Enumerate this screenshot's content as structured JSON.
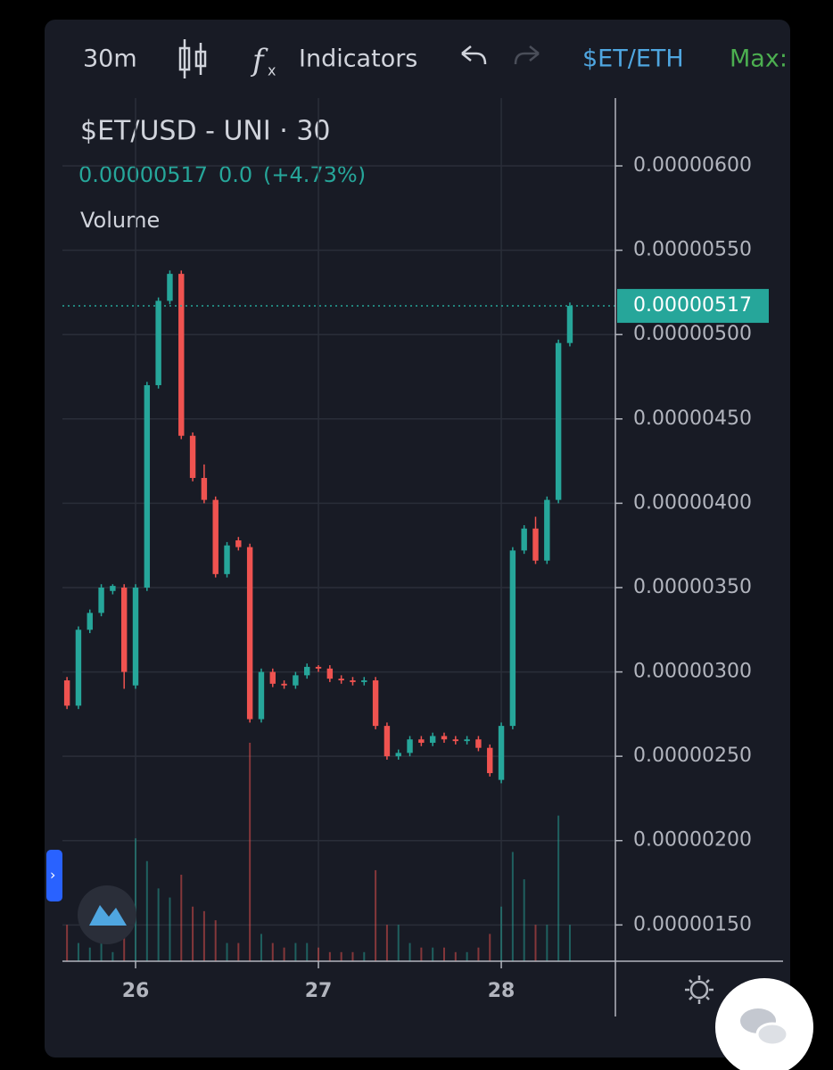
{
  "toolbar": {
    "interval": "30m",
    "indicators": "Indicators",
    "symbol": "$ET/ETH",
    "max": "Max:"
  },
  "chart_data": {
    "type": "candlestick",
    "title": "$ET/USD - UNI · 30",
    "last_price": {
      "value": 5.17e-06,
      "label": "0.00000517"
    },
    "change": "0.0",
    "change_pct": "(+4.73%)",
    "volume_label": "Volume",
    "colors": {
      "up": "#26a69a",
      "down": "#ef5350"
    },
    "xlim": [
      25.6,
      28.624
    ],
    "xticks": [
      26,
      27,
      28
    ],
    "ylim": [
      1.285e-06,
      6.402e-06
    ],
    "yticks": [
      {
        "value": 1.5e-06,
        "label": "0.00000150"
      },
      {
        "value": 2e-06,
        "label": "0.00000200"
      },
      {
        "value": 2.5e-06,
        "label": "0.00000250"
      },
      {
        "value": 3e-06,
        "label": "0.00000300"
      },
      {
        "value": 3.5e-06,
        "label": "0.00000350"
      },
      {
        "value": 4e-06,
        "label": "0.00000400"
      },
      {
        "value": 4.5e-06,
        "label": "0.00000450"
      },
      {
        "value": 5e-06,
        "label": "0.00000500"
      },
      {
        "value": 5.5e-06,
        "label": "0.00000550"
      },
      {
        "value": 6e-06,
        "label": "0.00000600"
      }
    ],
    "grid": true,
    "x": [
      25.625,
      25.6875,
      25.75,
      25.8125,
      25.875,
      25.9375,
      26,
      26.0625,
      26.125,
      26.1875,
      26.25,
      26.3125,
      26.375,
      26.4375,
      26.5,
      26.5625,
      26.625,
      26.6875,
      26.75,
      26.8125,
      26.875,
      26.9375,
      27,
      27.0625,
      27.125,
      27.1875,
      27.25,
      27.3125,
      27.375,
      27.4375,
      27.5,
      27.5625,
      27.625,
      27.6875,
      27.75,
      27.8125,
      27.875,
      27.9375,
      28,
      28.0625,
      28.125,
      28.1875,
      28.25,
      28.3125,
      28.375
    ],
    "open": [
      2.95e-06,
      2.8e-06,
      3.25e-06,
      3.35e-06,
      3.48e-06,
      3.5e-06,
      2.92e-06,
      3.5e-06,
      4.7e-06,
      5.2e-06,
      5.36e-06,
      4.4e-06,
      4.15e-06,
      4.02e-06,
      3.58e-06,
      3.78e-06,
      3.74e-06,
      2.72e-06,
      3e-06,
      2.93e-06,
      2.92e-06,
      2.98e-06,
      3.03e-06,
      3.02e-06,
      2.96e-06,
      2.95e-06,
      2.94e-06,
      2.95e-06,
      2.68e-06,
      2.5e-06,
      2.52e-06,
      2.6e-06,
      2.58e-06,
      2.62e-06,
      2.6e-06,
      2.59e-06,
      2.6e-06,
      2.55e-06,
      2.36e-06,
      2.68e-06,
      3.72e-06,
      3.85e-06,
      3.66e-06,
      4.02e-06,
      4.95e-06
    ],
    "high": [
      2.97e-06,
      3.27e-06,
      3.37e-06,
      3.52e-06,
      3.52e-06,
      3.52e-06,
      3.52e-06,
      4.72e-06,
      5.22e-06,
      5.38e-06,
      5.38e-06,
      4.42e-06,
      4.23e-06,
      4.04e-06,
      3.77e-06,
      3.8e-06,
      3.76e-06,
      3.02e-06,
      3.02e-06,
      2.95e-06,
      3e-06,
      3.05e-06,
      3.04e-06,
      3.04e-06,
      2.98e-06,
      2.97e-06,
      2.97e-06,
      2.97e-06,
      2.7e-06,
      2.54e-06,
      2.62e-06,
      2.62e-06,
      2.64e-06,
      2.64e-06,
      2.62e-06,
      2.62e-06,
      2.62e-06,
      2.57e-06,
      2.7e-06,
      3.74e-06,
      3.87e-06,
      3.92e-06,
      4.04e-06,
      4.97e-06,
      5.19e-06
    ],
    "low": [
      2.78e-06,
      2.78e-06,
      3.23e-06,
      3.33e-06,
      3.46e-06,
      2.9e-06,
      2.9e-06,
      3.48e-06,
      4.68e-06,
      5.18e-06,
      4.38e-06,
      4.13e-06,
      4e-06,
      3.56e-06,
      3.56e-06,
      3.72e-06,
      2.7e-06,
      2.7e-06,
      2.91e-06,
      2.9e-06,
      2.9e-06,
      2.96e-06,
      3e-06,
      2.94e-06,
      2.93e-06,
      2.92e-06,
      2.92e-06,
      2.66e-06,
      2.48e-06,
      2.48e-06,
      2.5e-06,
      2.56e-06,
      2.56e-06,
      2.58e-06,
      2.57e-06,
      2.57e-06,
      2.53e-06,
      2.38e-06,
      2.34e-06,
      2.66e-06,
      3.7e-06,
      3.64e-06,
      3.64e-06,
      4e-06,
      4.93e-06
    ],
    "close": [
      2.8e-06,
      3.25e-06,
      3.35e-06,
      3.5e-06,
      3.51e-06,
      3e-06,
      3.5e-06,
      4.7e-06,
      5.2e-06,
      5.36e-06,
      4.4e-06,
      4.15e-06,
      4.02e-06,
      3.58e-06,
      3.75e-06,
      3.74e-06,
      2.72e-06,
      3e-06,
      2.93e-06,
      2.92e-06,
      2.98e-06,
      3.03e-06,
      3.02e-06,
      2.96e-06,
      2.95e-06,
      2.94e-06,
      2.95e-06,
      2.68e-06,
      2.5e-06,
      2.52e-06,
      2.6e-06,
      2.58e-06,
      2.62e-06,
      2.6e-06,
      2.59e-06,
      2.6e-06,
      2.55e-06,
      2.4e-06,
      2.68e-06,
      3.72e-06,
      3.85e-06,
      3.66e-06,
      4.02e-06,
      4.95e-06,
      5.17e-06
    ],
    "volume": [
      40,
      20,
      15,
      20,
      10,
      50,
      135,
      110,
      80,
      70,
      95,
      60,
      55,
      45,
      20,
      20,
      240,
      30,
      20,
      15,
      20,
      20,
      15,
      10,
      10,
      10,
      10,
      100,
      40,
      40,
      20,
      15,
      15,
      15,
      10,
      10,
      15,
      30,
      60,
      120,
      90,
      40,
      40,
      160,
      40
    ]
  }
}
